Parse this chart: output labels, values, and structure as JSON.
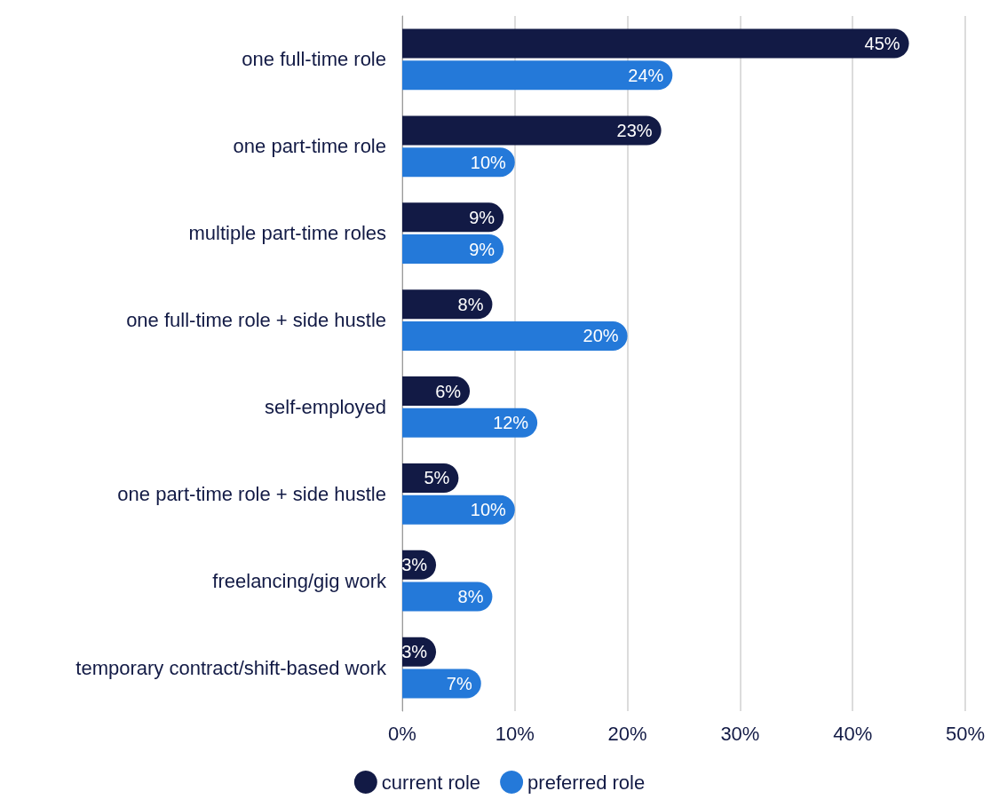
{
  "chart_data": {
    "type": "bar",
    "orientation": "horizontal",
    "categories": [
      "one full-time role",
      "one part-time role",
      "multiple part-time roles",
      "one full-time role + side hustle",
      "self-employed",
      "one part-time role + side hustle",
      "freelancing/gig work",
      "temporary contract/shift-based work"
    ],
    "series": [
      {
        "name": "current role",
        "color": "#121a45",
        "values": [
          45,
          23,
          9,
          8,
          6,
          5,
          3,
          3
        ],
        "value_labels": [
          "45%",
          "23%",
          "9%",
          "8%",
          "6%",
          "5%",
          "3%",
          "3%"
        ]
      },
      {
        "name": "preferred role",
        "color": "#2479d9",
        "values": [
          24,
          10,
          9,
          20,
          12,
          10,
          8,
          7
        ],
        "value_labels": [
          "24%",
          "10%",
          "9%",
          "20%",
          "12%",
          "10%",
          "8%",
          "7%"
        ]
      }
    ],
    "xlim": [
      0,
      50
    ],
    "xticks": [
      {
        "value": 0,
        "label": "0%"
      },
      {
        "value": 10,
        "label": "10%"
      },
      {
        "value": 20,
        "label": "20%"
      },
      {
        "value": 30,
        "label": "30%"
      },
      {
        "value": 40,
        "label": "40%"
      },
      {
        "value": 50,
        "label": "50%"
      }
    ],
    "grid": "x",
    "legend": "bottom"
  }
}
